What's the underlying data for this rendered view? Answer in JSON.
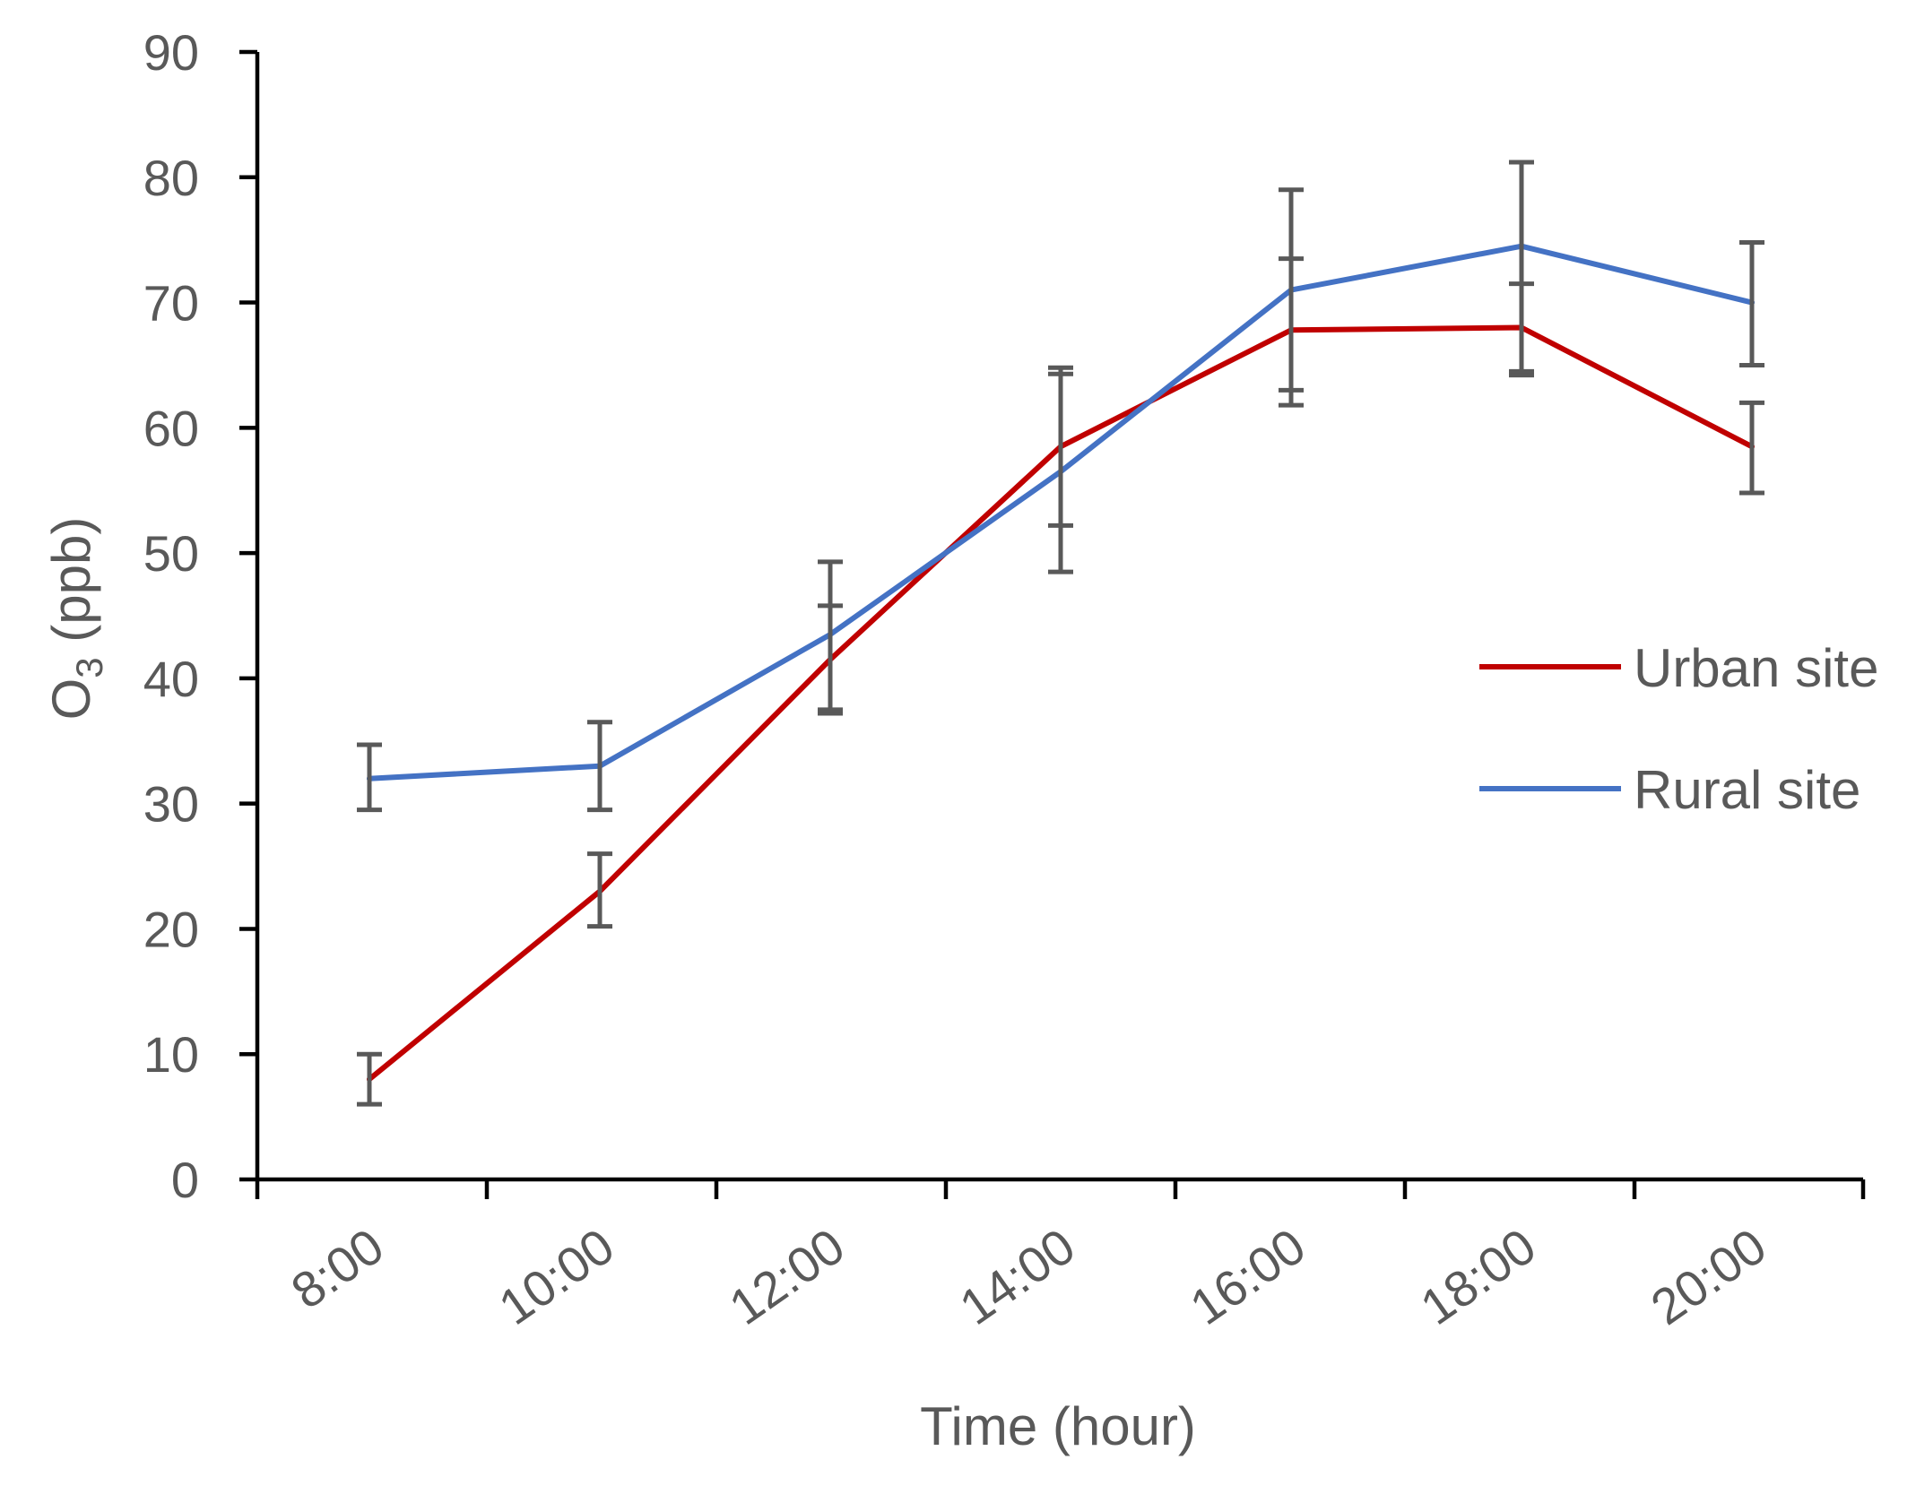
{
  "chart_data": {
    "type": "line",
    "title": "",
    "xlabel": "Time (hour)",
    "ylabel_main": "O",
    "ylabel_sub": "3",
    "ylabel_suffix": " (ppb)",
    "ylim": [
      0,
      90
    ],
    "ytick_values": [
      0,
      10,
      20,
      30,
      40,
      50,
      60,
      70,
      80,
      90
    ],
    "categories": [
      "8:00",
      "10:00",
      "12:00",
      "14:00",
      "16:00",
      "18:00",
      "20:00"
    ],
    "grid": false,
    "legend_position": "right",
    "series": [
      {
        "name": "Urban site",
        "color": "#c00000",
        "values": [
          8,
          23,
          41.5,
          58.5,
          67.8,
          68,
          58.5
        ],
        "error_low": [
          6,
          20.2,
          37.2,
          52.2,
          61.8,
          64.2,
          54.8
        ],
        "error_high": [
          10,
          26,
          45.8,
          64.8,
          73.5,
          71.5,
          62
        ]
      },
      {
        "name": "Rural site",
        "color": "#4472c4",
        "values": [
          32,
          33,
          43.5,
          56.5,
          71,
          74.5,
          70
        ],
        "error_low": [
          29.5,
          29.5,
          37.5,
          48.5,
          63,
          64.5,
          65
        ],
        "error_high": [
          34.7,
          36.5,
          49.3,
          64.3,
          79,
          81.2,
          74.8
        ]
      }
    ]
  }
}
